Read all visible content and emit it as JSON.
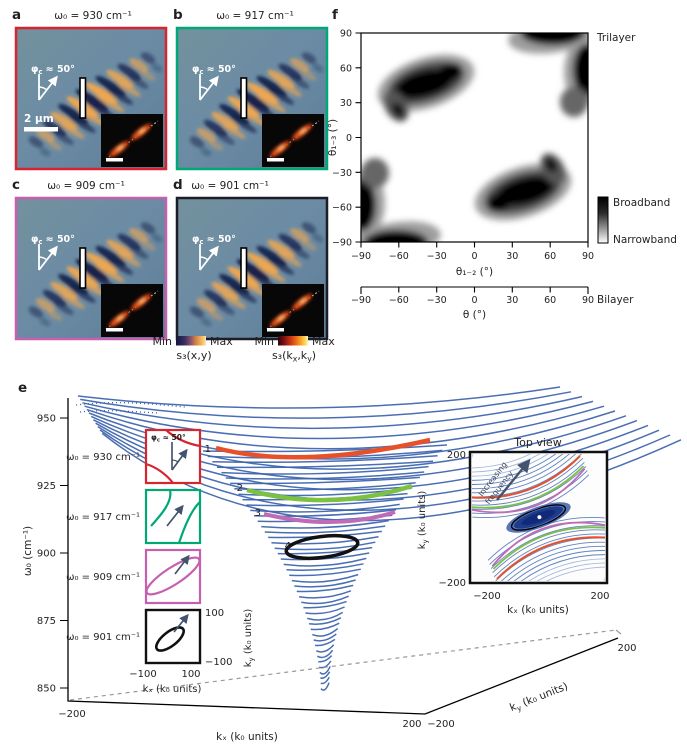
{
  "panels_top": {
    "a": {
      "letter": "a",
      "freq": "ω₀ = 930 cm⁻¹"
    },
    "b": {
      "letter": "b",
      "freq": "ω₀ = 917 cm⁻¹"
    },
    "c": {
      "letter": "c",
      "freq": "ω₀ = 909 cm⁻¹"
    },
    "d": {
      "letter": "d",
      "freq": "ω₀ = 901 cm⁻¹"
    }
  },
  "annotations": {
    "phi": {
      "p1": "φ",
      "sub": "c",
      "p2": " ≈ 50°"
    },
    "scalebar": "2 μm"
  },
  "colorbar_legend": {
    "real_space": {
      "min": "Min",
      "max": "Max",
      "label": "s₃(x,y)"
    },
    "k_space": {
      "min": "Min",
      "max": "Max",
      "p1": "s₃(k",
      "s1": "x",
      "p2": ",k",
      "s2": "y",
      "p3": ")"
    }
  },
  "panel_f": {
    "letter": "f",
    "trilayer": "Trilayer",
    "bilayer": "Bilayer",
    "broadband": "Broadband",
    "narrowband": "Narrowband",
    "ylabel": "θ₁₋₃ (°)",
    "xlabel": "θ₁₋₂ (°)",
    "xlabel2": "θ (°)",
    "yticks": [
      "90",
      "60",
      "30",
      "0",
      "−30",
      "−60",
      "−90"
    ],
    "xticks": [
      "−90",
      "−60",
      "−30",
      "0",
      "30",
      "60",
      "90"
    ],
    "xticks2": [
      "−90",
      "−60",
      "−30",
      "0",
      "30",
      "60",
      "90"
    ]
  },
  "panel_e": {
    "letter": "e",
    "ylabel": "ω₀ (cm⁻¹)",
    "yticks": [
      "950",
      "925",
      "900",
      "875",
      "850"
    ],
    "xlabel": "kₓ (k₀ units)",
    "x_min": "−200",
    "x_max": "200",
    "ky": {
      "p1": "k",
      "sub": "y",
      "p2": " (k₀ units)"
    },
    "ky_min": "−200",
    "ky_max": "200",
    "cut_labels": [
      "1",
      "2",
      "3",
      "4"
    ],
    "legend": {
      "freq_930": "ω₀ = 930 cm⁻¹",
      "freq_917": "ω₀ = 917 cm⁻¹",
      "freq_909": "ω₀ = 909 cm⁻¹",
      "freq_901": "ω₀ = 901 cm⁻¹",
      "ax_y_max": "100",
      "ax_y_min": "−100",
      "ax_x_min": "−100",
      "ax_x_max": "100",
      "ax_xlabel": "kₓ (k₀ units)"
    },
    "topview": {
      "title": "Top view",
      "annot1": "Increasing",
      "annot2": "frequency",
      "y_max": "200",
      "y_min": "−200",
      "x_min": "−200",
      "x_max": "200",
      "xlabel": "kₓ (k₀ units)"
    }
  },
  "colors": {
    "red": "#d6252e",
    "red_text": "#e0393f",
    "green": "#00a876",
    "magenta": "#c75fb0",
    "dark": "#231f20",
    "dark_border": "#1d1d27",
    "line_red": "#e8502a",
    "line_green": "#7cc142",
    "line_green_text": "#5fb33c",
    "line_magenta": "#c06bb5",
    "funnel_blue": "#3b62ad",
    "contour_blue": "#4f74b8",
    "arrow_slate": "#44546e"
  }
}
